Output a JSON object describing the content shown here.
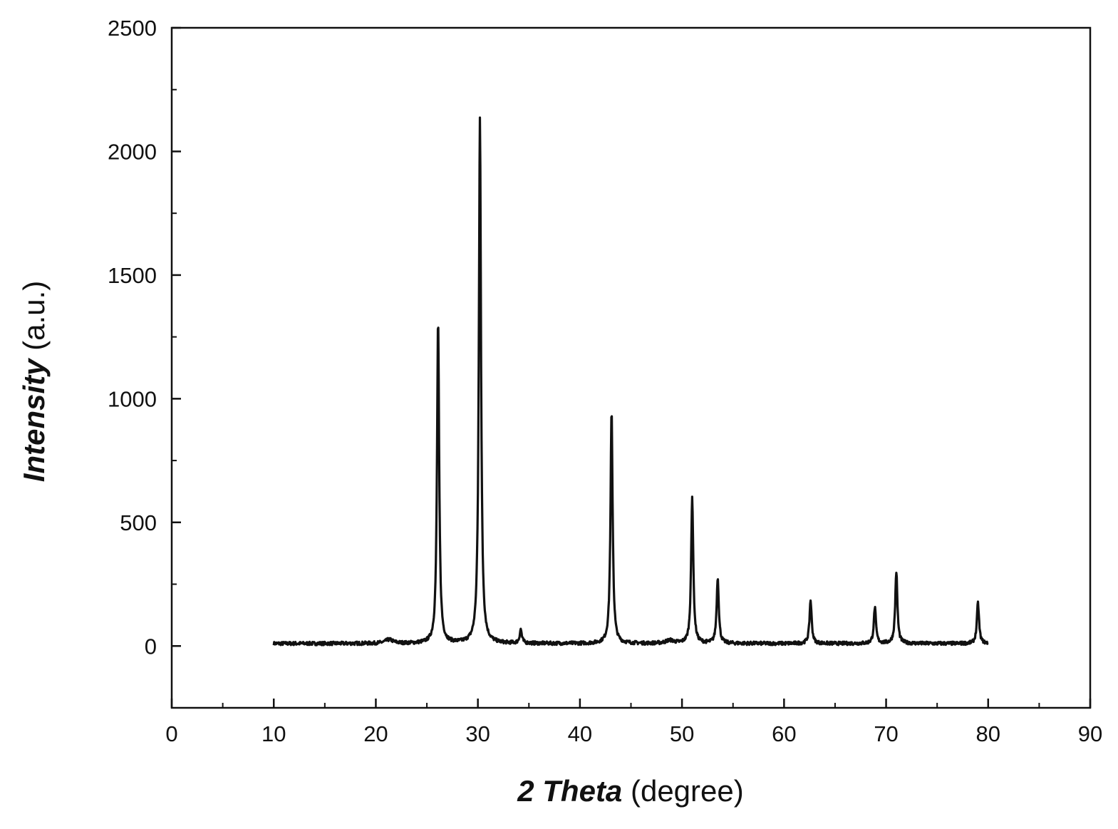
{
  "chart_data": {
    "type": "line",
    "title": "",
    "xlabel": {
      "emphasis": "2 Theta",
      "rest": "(degree)"
    },
    "ylabel": {
      "emphasis": "Intensity",
      "rest": "(a.u.)"
    },
    "xlim": [
      0,
      90
    ],
    "ylim": [
      -250,
      2500
    ],
    "xticks": [
      0,
      10,
      20,
      30,
      40,
      50,
      60,
      70,
      80,
      90
    ],
    "xtick_labels": [
      "0",
      "10",
      "20",
      "30",
      "40",
      "50",
      "60",
      "70",
      "80",
      "90"
    ],
    "yticks": [
      0,
      500,
      1000,
      1500,
      2000,
      2500
    ],
    "ytick_labels": [
      "0",
      "500",
      "1000",
      "1500",
      "2000",
      "2500"
    ],
    "grid": false,
    "legend": "none",
    "line_color": "#111111",
    "x_range_measured": [
      10,
      80
    ],
    "baseline": 10,
    "series": [
      {
        "peaks": [
          {
            "x": 21.3,
            "y": 25
          },
          {
            "x": 26.1,
            "y": 1310
          },
          {
            "x": 30.2,
            "y": 2140
          },
          {
            "x": 34.2,
            "y": 65
          },
          {
            "x": 43.1,
            "y": 945
          },
          {
            "x": 48.8,
            "y": 22
          },
          {
            "x": 51.0,
            "y": 600
          },
          {
            "x": 53.5,
            "y": 275
          },
          {
            "x": 62.6,
            "y": 185
          },
          {
            "x": 68.9,
            "y": 155
          },
          {
            "x": 71.0,
            "y": 300
          },
          {
            "x": 79.0,
            "y": 175
          }
        ]
      }
    ]
  }
}
